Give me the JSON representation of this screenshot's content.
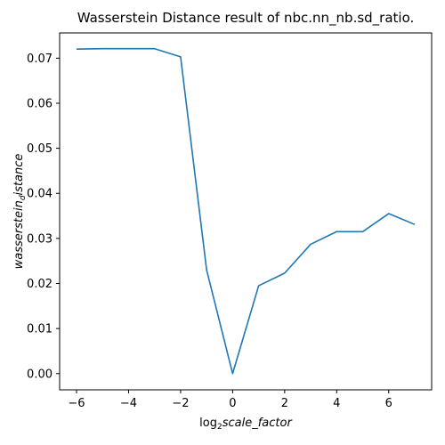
{
  "chart_data": {
    "type": "line",
    "title": "Wasserstein Distance result of nbc.nn_nb.sd_ratio.",
    "xlabel": {
      "prefix": "log",
      "subscript": "2",
      "rest": "scale_factor"
    },
    "ylabel": {
      "prefix": "wasserstein",
      "subscript": "d",
      "rest": "istance"
    },
    "xlim": [
      -6.65,
      7.65
    ],
    "ylim": [
      -0.0036,
      0.0756
    ],
    "xticks": [
      -6,
      -4,
      -2,
      0,
      2,
      4,
      6
    ],
    "xtick_labels": [
      "−6",
      "−4",
      "−2",
      "0",
      "2",
      "4",
      "6"
    ],
    "yticks": [
      0.0,
      0.01,
      0.02,
      0.03,
      0.04,
      0.05,
      0.06,
      0.07
    ],
    "ytick_labels": [
      "0.00",
      "0.01",
      "0.02",
      "0.03",
      "0.04",
      "0.05",
      "0.06",
      "0.07"
    ],
    "grid": false,
    "series": [
      {
        "color": "#1f77b4",
        "x": [
          -6,
          -5,
          -4,
          -3,
          -2,
          -1,
          0,
          1,
          2,
          3,
          4,
          5,
          6,
          7
        ],
        "y": [
          0.072,
          0.0721,
          0.0721,
          0.0721,
          0.0703,
          0.023,
          0.0,
          0.0195,
          0.0223,
          0.0287,
          0.0315,
          0.0315,
          0.0355,
          0.0331
        ]
      }
    ]
  }
}
